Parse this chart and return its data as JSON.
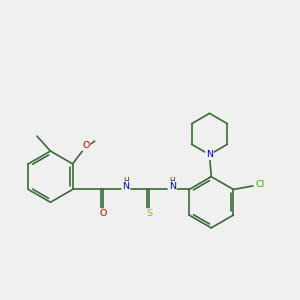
{
  "background_color": "#f0f0f0",
  "bond_color": "#3a6b3a",
  "bond_width": 1.2,
  "figsize": [
    3.0,
    3.0
  ],
  "dpi": 100,
  "atom_colors": {
    "O": "#dd0000",
    "N": "#0000cc",
    "S": "#bbaa00",
    "Cl": "#44aa00",
    "C": "#3a6b3a"
  }
}
